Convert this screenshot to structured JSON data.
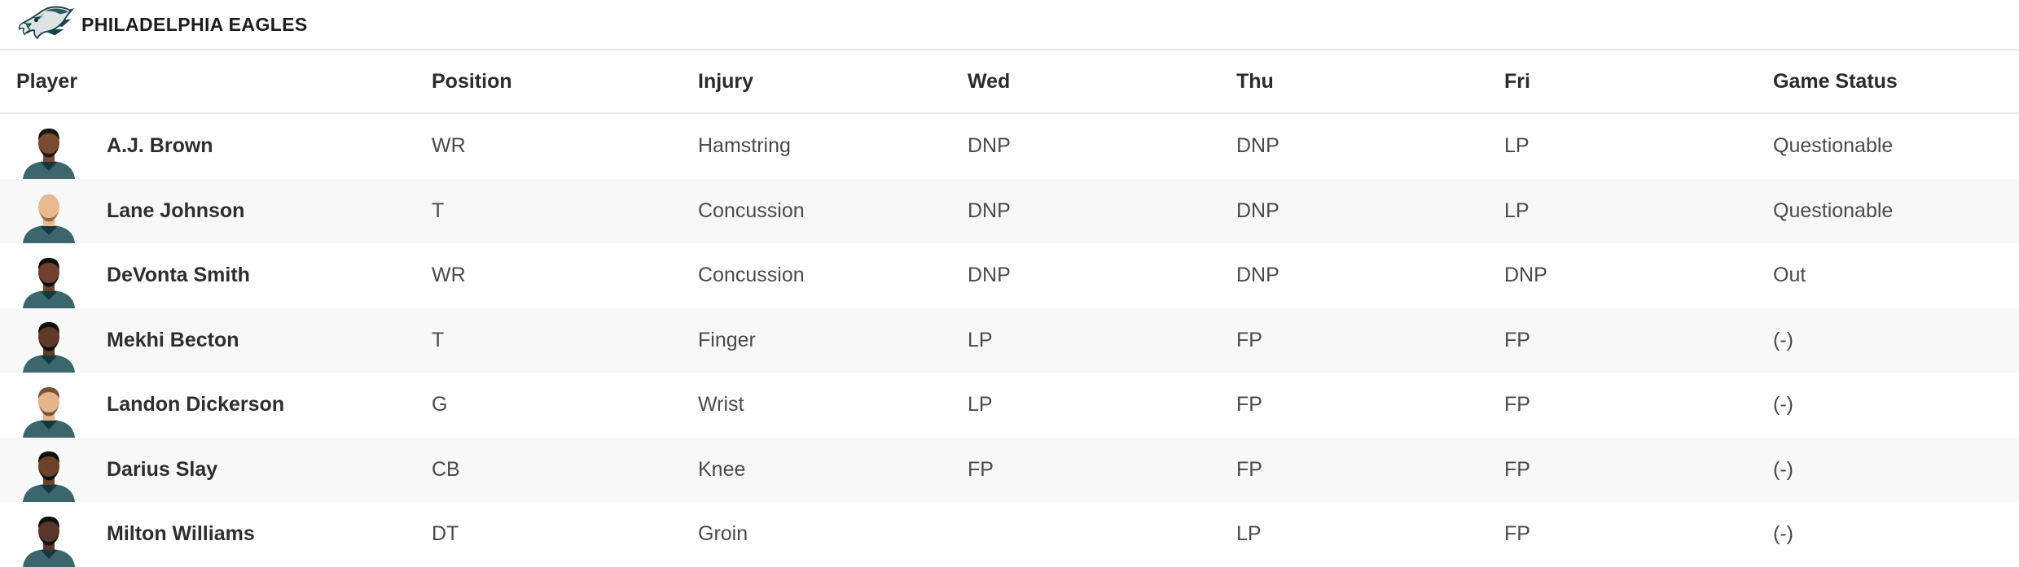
{
  "team_header": {
    "title": "PHILADELPHIA EAGLES"
  },
  "colors": {
    "stripe": "#f8f8f8",
    "border": "#e9e9e9",
    "header_text": "#2b2b2b",
    "cell_text": "#4a4a4a",
    "name_text": "#2e2e2e",
    "jersey": "#3a666c",
    "jersey_collar": "#16383c",
    "logo_dark_teal": "#16444b",
    "logo_silver": "#dde2e3"
  },
  "table": {
    "columns": [
      {
        "key": "player",
        "label": "Player"
      },
      {
        "key": "position",
        "label": "Position"
      },
      {
        "key": "injury",
        "label": "Injury"
      },
      {
        "key": "wed",
        "label": "Wed"
      },
      {
        "key": "thu",
        "label": "Thu"
      },
      {
        "key": "fri",
        "label": "Fri"
      },
      {
        "key": "game_status",
        "label": "Game Status"
      }
    ],
    "rows": [
      {
        "player": "A.J. Brown",
        "position": "WR",
        "injury": "Hamstring",
        "wed": "DNP",
        "thu": "DNP",
        "fri": "LP",
        "game_status": "Questionable",
        "avatar": {
          "skin": "#7a4a32",
          "hair": "#1c1714",
          "beard": "#1c1714"
        }
      },
      {
        "player": "Lane Johnson",
        "position": "T",
        "injury": "Concussion",
        "wed": "DNP",
        "thu": "DNP",
        "fri": "LP",
        "game_status": "Questionable",
        "avatar": {
          "skin": "#e9b98f",
          "hair": null,
          "beard": "#9a6b42"
        }
      },
      {
        "player": "DeVonta Smith",
        "position": "WR",
        "injury": "Concussion",
        "wed": "DNP",
        "thu": "DNP",
        "fri": "DNP",
        "game_status": "Out",
        "avatar": {
          "skin": "#6e422c",
          "hair": "#0e0e0e",
          "beard": "#0e0e0e"
        }
      },
      {
        "player": "Mekhi Becton",
        "position": "T",
        "injury": "Finger",
        "wed": "LP",
        "thu": "FP",
        "fri": "FP",
        "game_status": "(-)",
        "avatar": {
          "skin": "#5f3a28",
          "hair": "#120f0d",
          "beard": "#120f0d"
        }
      },
      {
        "player": "Landon Dickerson",
        "position": "G",
        "injury": "Wrist",
        "wed": "LP",
        "thu": "FP",
        "fri": "FP",
        "game_status": "(-)",
        "avatar": {
          "skin": "#e4b48d",
          "hair": "#7a5436",
          "beard": "#7a5436"
        }
      },
      {
        "player": "Darius Slay",
        "position": "CB",
        "injury": "Knee",
        "wed": "FP",
        "thu": "FP",
        "fri": "FP",
        "game_status": "(-)",
        "avatar": {
          "skin": "#6b4129",
          "hair": "#101010",
          "beard": "#101010"
        }
      },
      {
        "player": "Milton Williams",
        "position": "DT",
        "injury": "Groin",
        "wed": "",
        "thu": "LP",
        "fri": "FP",
        "game_status": "(-)",
        "avatar": {
          "skin": "#59362a",
          "hair": "#14100e",
          "beard": "#14100e"
        }
      }
    ]
  }
}
